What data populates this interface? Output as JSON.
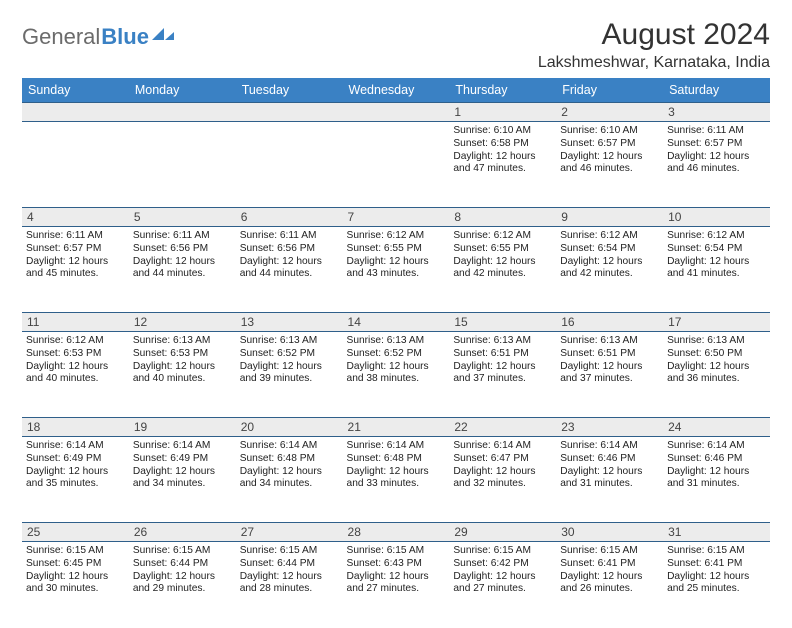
{
  "logo": {
    "t1": "General",
    "t2": "Blue"
  },
  "title": "August 2024",
  "location": "Lakshmeshwar, Karnataka, India",
  "weekdays": [
    "Sunday",
    "Monday",
    "Tuesday",
    "Wednesday",
    "Thursday",
    "Friday",
    "Saturday"
  ],
  "colors": {
    "header_bg": "#3a81c4",
    "header_text": "#ffffff",
    "daynum_bg": "#ececec",
    "rule": "#2f5f8a",
    "text": "#222222",
    "logo_gray": "#6b6b6b",
    "logo_blue": "#3a81c4"
  },
  "weeks": [
    [
      null,
      null,
      null,
      null,
      {
        "n": "1",
        "sunrise": "6:10 AM",
        "sunset": "6:58 PM",
        "daylight": "12 hours and 47 minutes."
      },
      {
        "n": "2",
        "sunrise": "6:10 AM",
        "sunset": "6:57 PM",
        "daylight": "12 hours and 46 minutes."
      },
      {
        "n": "3",
        "sunrise": "6:11 AM",
        "sunset": "6:57 PM",
        "daylight": "12 hours and 46 minutes."
      }
    ],
    [
      {
        "n": "4",
        "sunrise": "6:11 AM",
        "sunset": "6:57 PM",
        "daylight": "12 hours and 45 minutes."
      },
      {
        "n": "5",
        "sunrise": "6:11 AM",
        "sunset": "6:56 PM",
        "daylight": "12 hours and 44 minutes."
      },
      {
        "n": "6",
        "sunrise": "6:11 AM",
        "sunset": "6:56 PM",
        "daylight": "12 hours and 44 minutes."
      },
      {
        "n": "7",
        "sunrise": "6:12 AM",
        "sunset": "6:55 PM",
        "daylight": "12 hours and 43 minutes."
      },
      {
        "n": "8",
        "sunrise": "6:12 AM",
        "sunset": "6:55 PM",
        "daylight": "12 hours and 42 minutes."
      },
      {
        "n": "9",
        "sunrise": "6:12 AM",
        "sunset": "6:54 PM",
        "daylight": "12 hours and 42 minutes."
      },
      {
        "n": "10",
        "sunrise": "6:12 AM",
        "sunset": "6:54 PM",
        "daylight": "12 hours and 41 minutes."
      }
    ],
    [
      {
        "n": "11",
        "sunrise": "6:12 AM",
        "sunset": "6:53 PM",
        "daylight": "12 hours and 40 minutes."
      },
      {
        "n": "12",
        "sunrise": "6:13 AM",
        "sunset": "6:53 PM",
        "daylight": "12 hours and 40 minutes."
      },
      {
        "n": "13",
        "sunrise": "6:13 AM",
        "sunset": "6:52 PM",
        "daylight": "12 hours and 39 minutes."
      },
      {
        "n": "14",
        "sunrise": "6:13 AM",
        "sunset": "6:52 PM",
        "daylight": "12 hours and 38 minutes."
      },
      {
        "n": "15",
        "sunrise": "6:13 AM",
        "sunset": "6:51 PM",
        "daylight": "12 hours and 37 minutes."
      },
      {
        "n": "16",
        "sunrise": "6:13 AM",
        "sunset": "6:51 PM",
        "daylight": "12 hours and 37 minutes."
      },
      {
        "n": "17",
        "sunrise": "6:13 AM",
        "sunset": "6:50 PM",
        "daylight": "12 hours and 36 minutes."
      }
    ],
    [
      {
        "n": "18",
        "sunrise": "6:14 AM",
        "sunset": "6:49 PM",
        "daylight": "12 hours and 35 minutes."
      },
      {
        "n": "19",
        "sunrise": "6:14 AM",
        "sunset": "6:49 PM",
        "daylight": "12 hours and 34 minutes."
      },
      {
        "n": "20",
        "sunrise": "6:14 AM",
        "sunset": "6:48 PM",
        "daylight": "12 hours and 34 minutes."
      },
      {
        "n": "21",
        "sunrise": "6:14 AM",
        "sunset": "6:48 PM",
        "daylight": "12 hours and 33 minutes."
      },
      {
        "n": "22",
        "sunrise": "6:14 AM",
        "sunset": "6:47 PM",
        "daylight": "12 hours and 32 minutes."
      },
      {
        "n": "23",
        "sunrise": "6:14 AM",
        "sunset": "6:46 PM",
        "daylight": "12 hours and 31 minutes."
      },
      {
        "n": "24",
        "sunrise": "6:14 AM",
        "sunset": "6:46 PM",
        "daylight": "12 hours and 31 minutes."
      }
    ],
    [
      {
        "n": "25",
        "sunrise": "6:15 AM",
        "sunset": "6:45 PM",
        "daylight": "12 hours and 30 minutes."
      },
      {
        "n": "26",
        "sunrise": "6:15 AM",
        "sunset": "6:44 PM",
        "daylight": "12 hours and 29 minutes."
      },
      {
        "n": "27",
        "sunrise": "6:15 AM",
        "sunset": "6:44 PM",
        "daylight": "12 hours and 28 minutes."
      },
      {
        "n": "28",
        "sunrise": "6:15 AM",
        "sunset": "6:43 PM",
        "daylight": "12 hours and 27 minutes."
      },
      {
        "n": "29",
        "sunrise": "6:15 AM",
        "sunset": "6:42 PM",
        "daylight": "12 hours and 27 minutes."
      },
      {
        "n": "30",
        "sunrise": "6:15 AM",
        "sunset": "6:41 PM",
        "daylight": "12 hours and 26 minutes."
      },
      {
        "n": "31",
        "sunrise": "6:15 AM",
        "sunset": "6:41 PM",
        "daylight": "12 hours and 25 minutes."
      }
    ]
  ],
  "labels": {
    "sunrise": "Sunrise:",
    "sunset": "Sunset:",
    "daylight": "Daylight:"
  }
}
